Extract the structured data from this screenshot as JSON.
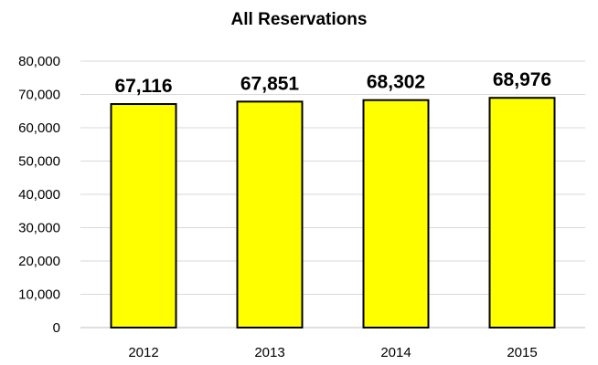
{
  "chart_data": {
    "type": "bar",
    "title": "All Reservations",
    "xlabel": "",
    "ylabel": "",
    "categories": [
      "2012",
      "2013",
      "2014",
      "2015"
    ],
    "values": [
      67116,
      67851,
      68302,
      68976
    ],
    "data_labels": [
      "67,116",
      "67,851",
      "68,302",
      "68,976"
    ],
    "ylim": [
      0,
      80000
    ],
    "yticks": [
      0,
      10000,
      20000,
      30000,
      40000,
      50000,
      60000,
      70000,
      80000
    ],
    "ytick_labels": [
      "0",
      "10,000",
      "20,000",
      "30,000",
      "40,000",
      "50,000",
      "60,000",
      "70,000",
      "80,000"
    ],
    "grid": true,
    "legend": "none",
    "colors": {
      "bar_fill": "#ffff00",
      "bar_stroke": "#000000"
    }
  }
}
